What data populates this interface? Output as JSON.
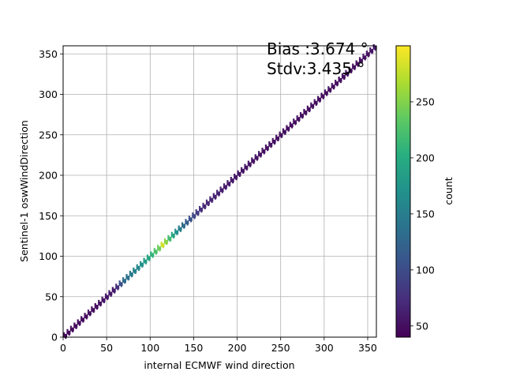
{
  "chart_data": {
    "type": "heatmap",
    "xlabel": "internal ECMWF wind direction",
    "ylabel": "Sentinel-1 oswWindDirection",
    "xlim": [
      0,
      360
    ],
    "ylim": [
      0,
      360
    ],
    "xticks": [
      0,
      50,
      100,
      150,
      200,
      250,
      300,
      350
    ],
    "yticks": [
      0,
      50,
      100,
      150,
      200,
      250,
      300,
      350
    ],
    "grid": true,
    "annotations": [
      "Bias :3.674 °",
      "Stdv:3.435 °"
    ],
    "colorbar": {
      "label": "count",
      "range": [
        40,
        300
      ],
      "ticks": [
        50,
        100,
        150,
        200,
        250
      ],
      "colormap": "viridis"
    },
    "diagonal": {
      "x": [
        0,
        40,
        60,
        70,
        80,
        90,
        100,
        110,
        115,
        120,
        130,
        140,
        160,
        200,
        260,
        300,
        350,
        360
      ],
      "counts": [
        45,
        50,
        60,
        130,
        150,
        170,
        200,
        240,
        290,
        230,
        170,
        120,
        70,
        55,
        50,
        50,
        50,
        60
      ]
    }
  }
}
